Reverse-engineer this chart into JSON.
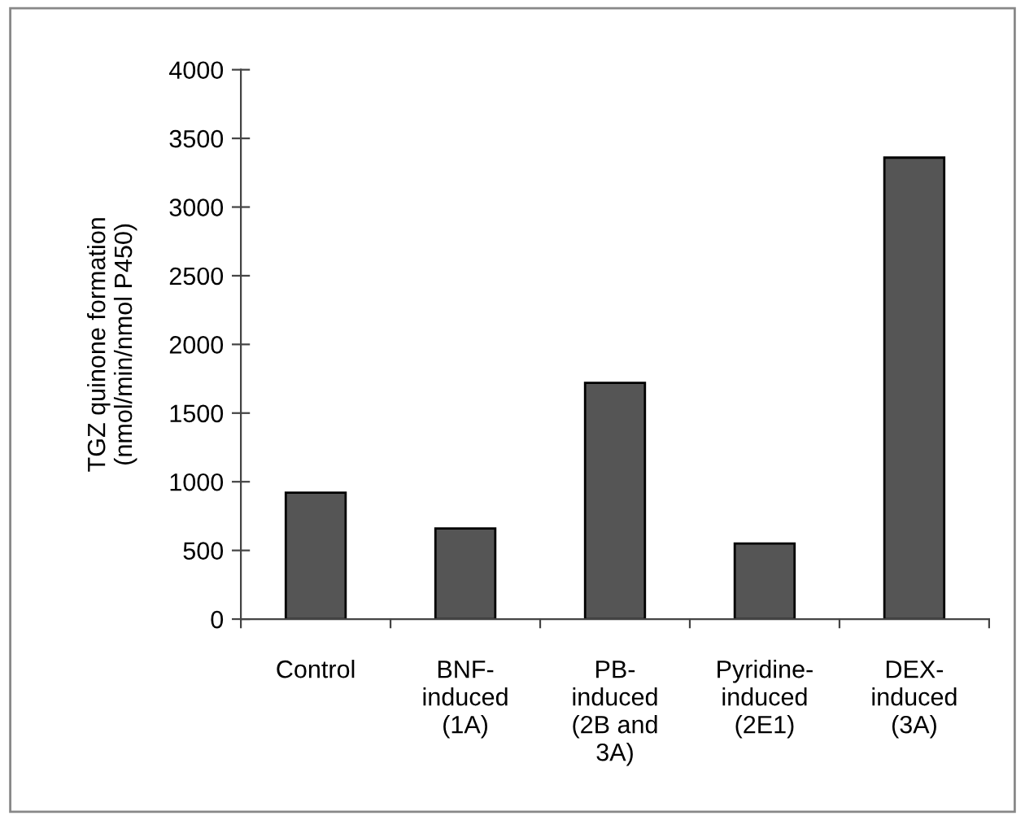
{
  "chart_data": {
    "type": "bar",
    "ylabel": "TGZ quinone formation\n(nmol/min/nmol P450)",
    "categories": [
      "Control",
      "BNF-\ninduced\n(1A)",
      "PB-\ninduced\n(2B and\n3A)",
      "Pyridine-\ninduced\n(2E1)",
      "DEX-\ninduced\n(3A)"
    ],
    "values": [
      920,
      660,
      1720,
      550,
      3360
    ],
    "color": "#555555",
    "ylim": [
      0,
      4000
    ],
    "yticks": [
      0,
      500,
      1000,
      1500,
      2000,
      2500,
      3000,
      3500,
      4000
    ],
    "grid": false
  }
}
